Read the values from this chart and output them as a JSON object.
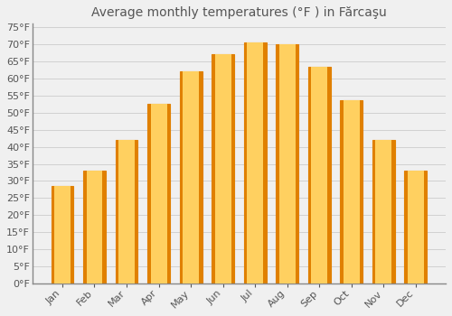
{
  "title": "Average monthly temperatures (°F ) in Fărcaşu",
  "months": [
    "Jan",
    "Feb",
    "Mar",
    "Apr",
    "May",
    "Jun",
    "Jul",
    "Aug",
    "Sep",
    "Oct",
    "Nov",
    "Dec"
  ],
  "values": [
    28.5,
    33.0,
    42.0,
    52.5,
    62.0,
    67.0,
    70.5,
    70.0,
    63.5,
    53.5,
    42.0,
    33.0
  ],
  "bar_color": "#FFA500",
  "bar_color_light": "#FFD060",
  "bar_edge_color": "#E08000",
  "background_color": "#F0F0F0",
  "grid_color": "#CCCCCC",
  "text_color": "#555555",
  "ylim": [
    0,
    76
  ],
  "yticks": [
    0,
    5,
    10,
    15,
    20,
    25,
    30,
    35,
    40,
    45,
    50,
    55,
    60,
    65,
    70,
    75
  ],
  "title_fontsize": 10,
  "tick_fontsize": 8
}
